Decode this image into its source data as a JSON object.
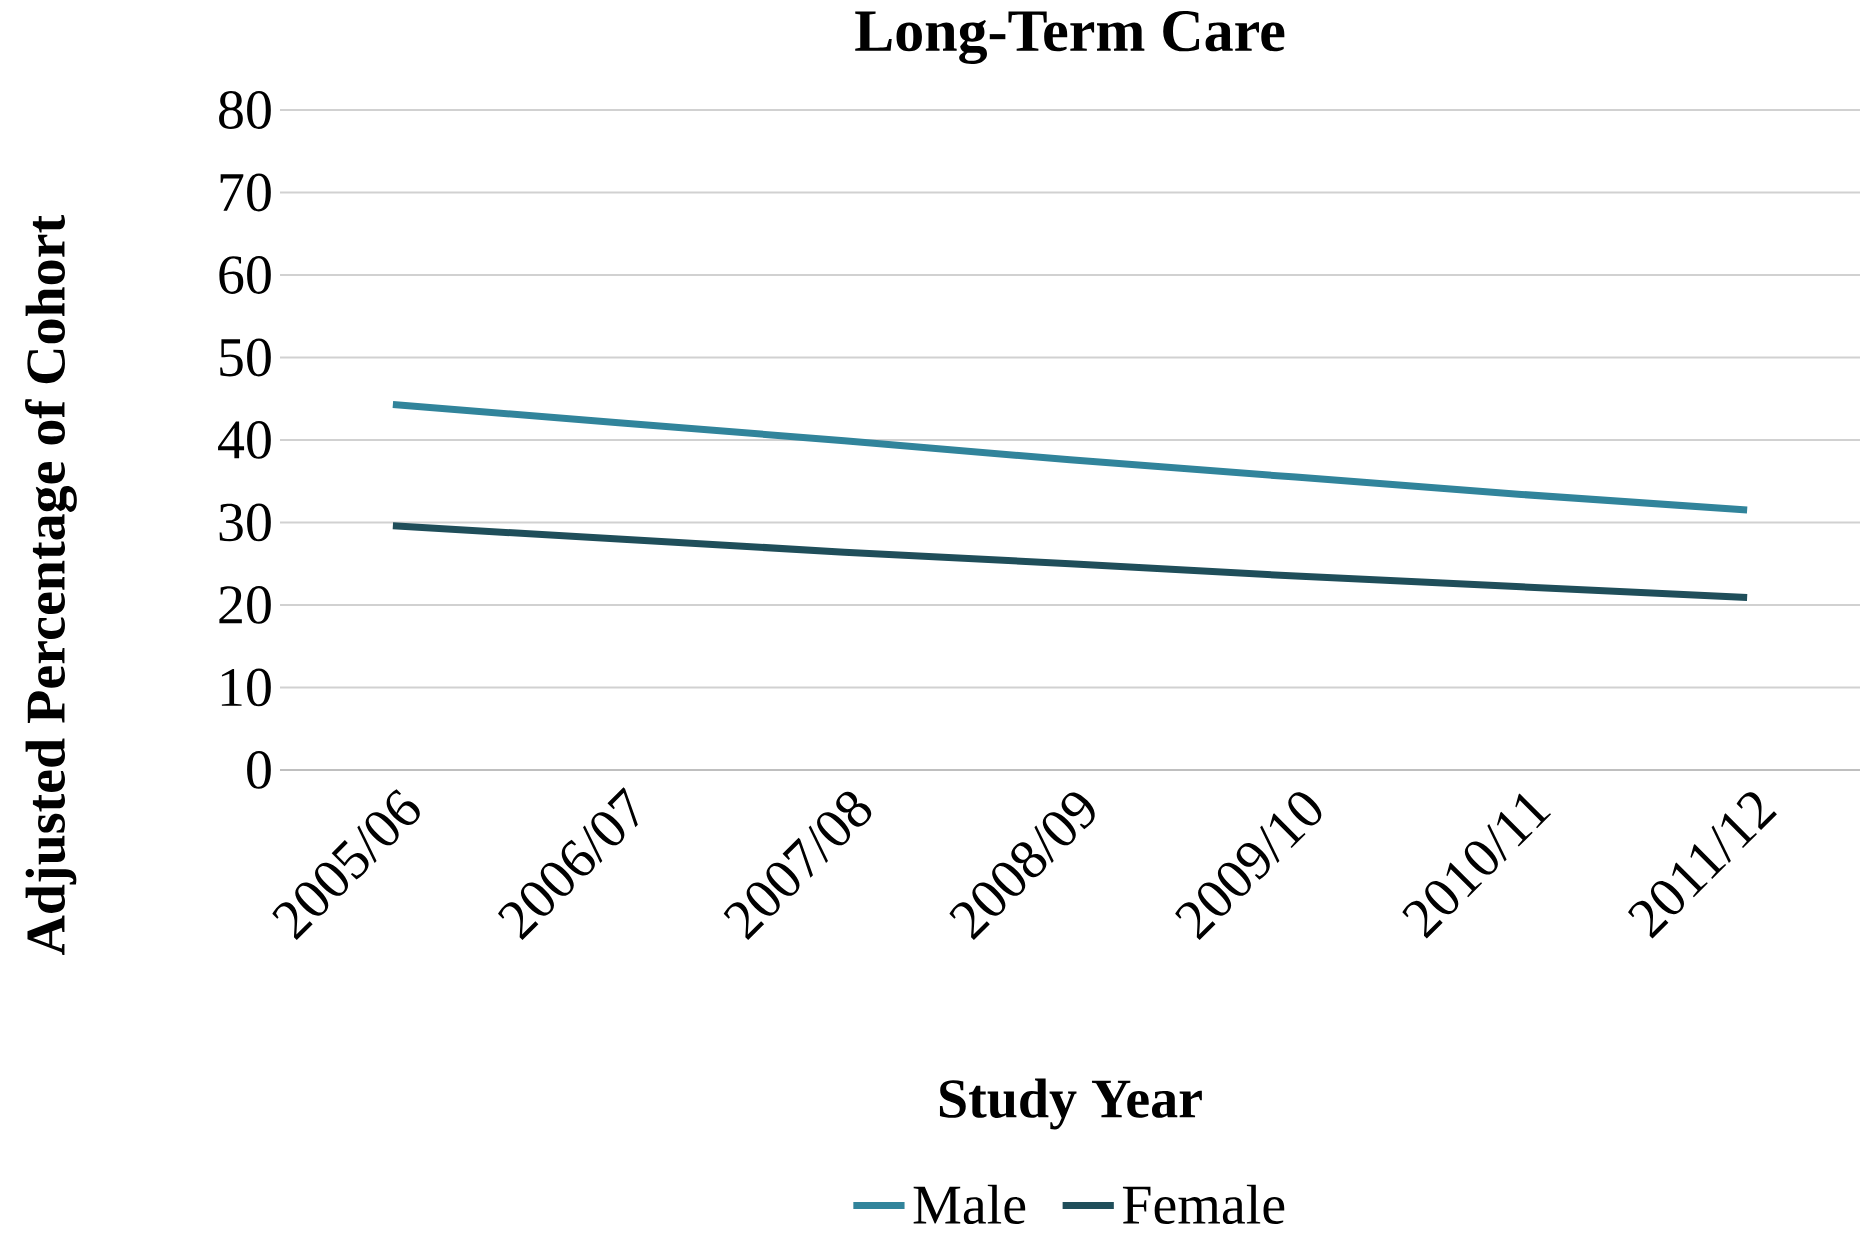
{
  "chart_data": {
    "type": "line",
    "title": "Long-Term Care",
    "xlabel": "Study Year",
    "ylabel": "Adjusted Percentage of Cohort",
    "categories": [
      "2005/06",
      "2006/07",
      "2007/08",
      "2008/09",
      "2009/10",
      "2010/11",
      "2011/12"
    ],
    "series": [
      {
        "name": "Male",
        "color": "#31849b",
        "values": [
          44.3,
          42.1,
          39.9,
          37.6,
          35.5,
          33.4,
          31.5
        ]
      },
      {
        "name": "Female",
        "color": "#1f4e5a",
        "values": [
          29.6,
          28.0,
          26.4,
          25.0,
          23.5,
          22.2,
          20.9
        ]
      }
    ],
    "ylim": [
      0,
      80
    ],
    "yticks": [
      0,
      10,
      20,
      30,
      40,
      50,
      60,
      70,
      80
    ],
    "grid": "y",
    "legend": "bottom",
    "marker": "none",
    "line_style": "solid"
  }
}
